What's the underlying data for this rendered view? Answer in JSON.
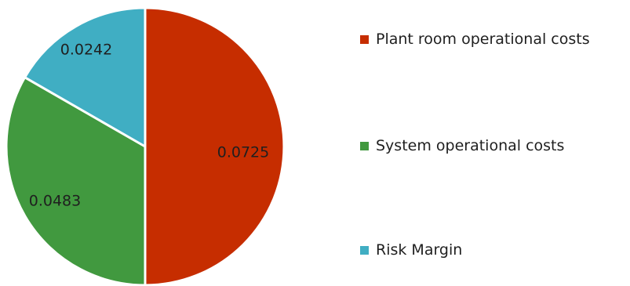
{
  "chart_data": {
    "type": "pie",
    "slices": [
      {
        "label": "Plant room operational costs",
        "value": 0.0725,
        "value_label": "0.0725",
        "color": "#c62d00"
      },
      {
        "label": "System operational costs",
        "value": 0.0483,
        "value_label": "0.0483",
        "color": "#41993f"
      },
      {
        "label": "Risk Margin",
        "value": 0.0242,
        "value_label": "0.0242",
        "color": "#40aec3"
      }
    ],
    "legend_position": "right",
    "start_angle_deg": 0,
    "direction": "clockwise",
    "slice_border_color": "#ffffff"
  }
}
